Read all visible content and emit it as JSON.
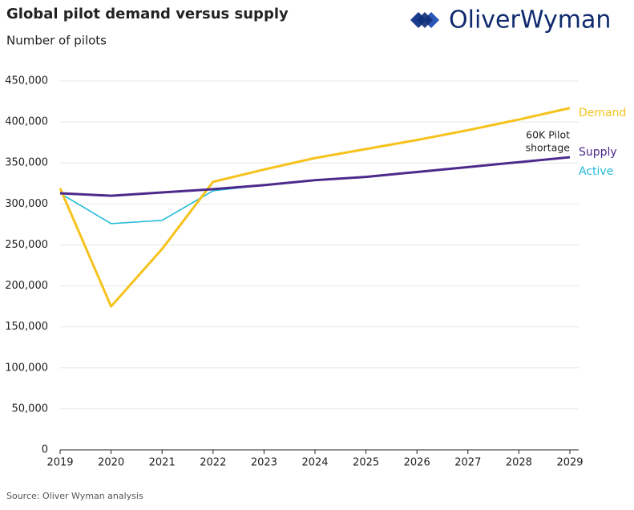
{
  "chart_data": {
    "type": "line",
    "title": "Global pilot demand versus supply",
    "subtitle": "Number of pilots",
    "logo": "OliverWyman",
    "source": "Source: Oliver Wyman analysis",
    "annotation": [
      "60K Pilot",
      "shortage"
    ],
    "categories": [
      "2019",
      "2020",
      "2021",
      "2022",
      "2023",
      "2024",
      "2025",
      "2026",
      "2027",
      "2028",
      "2029"
    ],
    "series": [
      {
        "name": "Active",
        "color": "#22bcd8",
        "values": [
          313000,
          276000,
          280000,
          316000,
          323000,
          329000,
          333000,
          339000,
          345000,
          351000,
          357000
        ]
      },
      {
        "name": "Demand",
        "color": "#f6c21c",
        "values": [
          319000,
          175000,
          245000,
          327000,
          342000,
          356000,
          367000,
          378000,
          390000,
          403000,
          417000
        ]
      },
      {
        "name": "Supply",
        "color": "#4b2a8c",
        "values": [
          313000,
          310000,
          314000,
          318000,
          323000,
          329000,
          333000,
          339000,
          345000,
          351000,
          357000
        ]
      }
    ],
    "ylim": [
      0,
      450000
    ],
    "yticks": [
      0,
      {
        "value": 50000,
        "label": "50,000"
      },
      {
        "value": 100000,
        "label": "100,000"
      },
      {
        "value": 150000,
        "label": "150,000"
      },
      {
        "value": 200000,
        "label": "200,000"
      },
      {
        "value": 250000,
        "label": "250,000"
      },
      {
        "value": 300000,
        "label": "300,000"
      },
      {
        "value": 350000,
        "label": "350,000"
      },
      {
        "value": 400000,
        "label": "400,000"
      },
      {
        "value": 450000,
        "label": "450,000"
      }
    ],
    "grid": true
  }
}
